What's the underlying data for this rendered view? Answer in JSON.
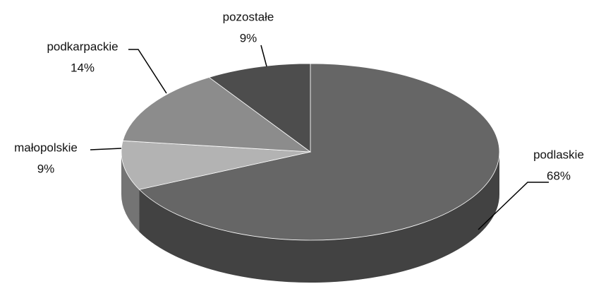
{
  "chart_data": {
    "type": "pie",
    "categories": [
      "podlaskie",
      "małopolskie",
      "podkarpackie",
      "pozostałe"
    ],
    "values": [
      68,
      9,
      14,
      9
    ],
    "value_labels": [
      "68%",
      "9%",
      "14%",
      "9%"
    ],
    "colors": [
      "#666666",
      "#b3b3b3",
      "#8c8c8c",
      "#4d4d4d"
    ]
  }
}
